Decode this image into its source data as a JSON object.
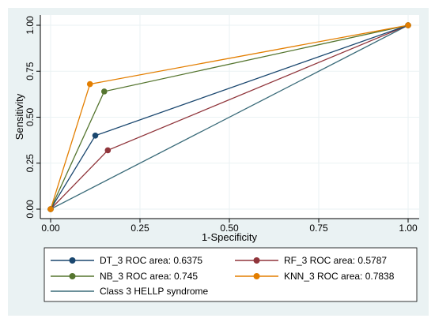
{
  "chart_data": {
    "type": "line",
    "xlabel": "1-Specificity",
    "ylabel": "Sensitivity",
    "xlim": [
      0,
      1
    ],
    "ylim": [
      0,
      1
    ],
    "x_ticks": [
      "0.00",
      "0.25",
      "0.50",
      "0.75",
      "1.00"
    ],
    "y_ticks": [
      "0.00",
      "0.25",
      "0.50",
      "0.75",
      "1.00"
    ],
    "grid": true,
    "legend_position": "bottom",
    "series": [
      {
        "name": "DT_3 ROC area: 0.6375",
        "color": "#1a476f",
        "marker": "circle",
        "x": [
          0,
          0.125,
          1
        ],
        "y": [
          0,
          0.4,
          1
        ]
      },
      {
        "name": "RF_3 ROC area: 0.5787",
        "color": "#90353b",
        "marker": "circle",
        "x": [
          0,
          0.16,
          1
        ],
        "y": [
          0,
          0.32,
          1
        ]
      },
      {
        "name": "NB_3 ROC area: 0.745",
        "color": "#55752f",
        "marker": "circle",
        "x": [
          0,
          0.15,
          1
        ],
        "y": [
          0,
          0.64,
          1
        ]
      },
      {
        "name": "KNN_3 ROC area: 0.7838",
        "color": "#e37e00",
        "marker": "circle",
        "x": [
          0,
          0.11,
          1
        ],
        "y": [
          0,
          0.68,
          1
        ]
      },
      {
        "name": "Class 3 HELLP syndrome",
        "color": "#3a6b79",
        "marker": "none",
        "x": [
          0,
          1
        ],
        "y": [
          0,
          1
        ]
      }
    ]
  }
}
